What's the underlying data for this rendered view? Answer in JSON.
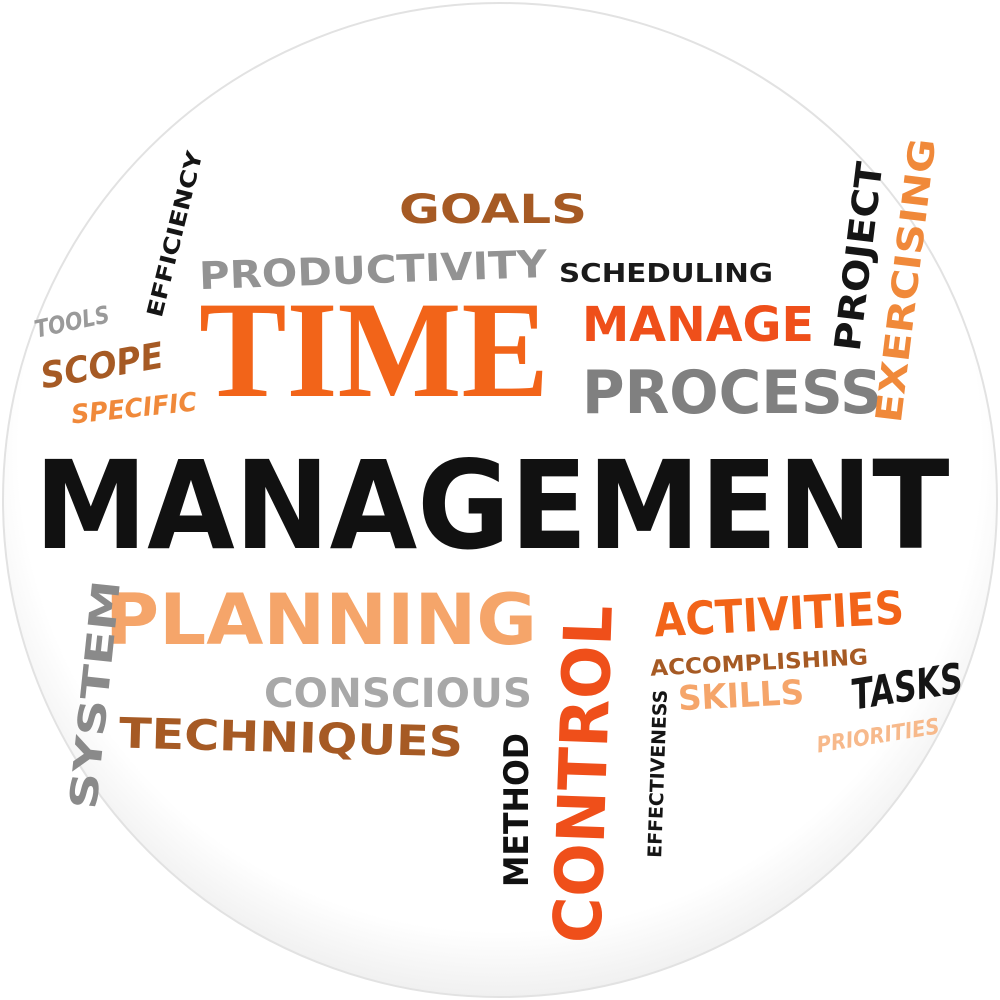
{
  "colors": {
    "background": "#ffffff",
    "sphere_fill": "#ffffff",
    "sphere_edge": "#e4e4e4",
    "black": "#111111",
    "grey": "#8f8f8f",
    "dark_orange": "#f26419",
    "orange": "#f0893a",
    "light_orange": "#f5a56a",
    "pale_orange": "#f7b98b",
    "brown": "#a65a24",
    "red_orange": "#ef4f1a"
  },
  "words": {
    "management": "MANAGEMENT",
    "time": "TIME",
    "goals": "GOALS",
    "productivity": "PRODUCTIVITY",
    "scheduling": "SCHEDULING",
    "manage": "MANAGE",
    "process": "PROCESS",
    "project": "PROJECT",
    "exercising": "EXERCISING",
    "efficiency": "EFFICIENCY",
    "tools": "TOOLS",
    "scope": "SCOPE",
    "specific": "SPECIFIC",
    "planning": "PLANNING",
    "system": "SYSTEM",
    "conscious": "CONSCIOUS",
    "techniques": "TECHNIQUES",
    "method": "METHOD",
    "control": "CONTROL",
    "effectiveness": "EFFECTIVENESS",
    "activities": "ACTIVITIES",
    "accomplishing": "ACCOMPLISHING",
    "skills": "SKILLS",
    "tasks": "TASKS",
    "priorities": "PRIORITIES"
  }
}
